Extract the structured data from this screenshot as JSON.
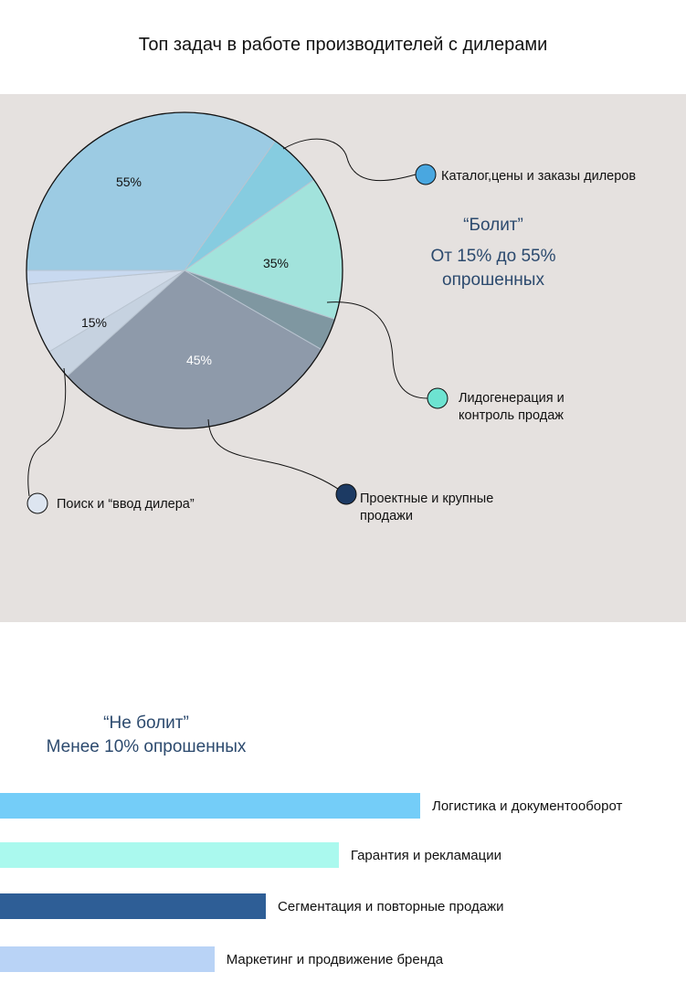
{
  "title": "Топ задач в работе производителей с дилерами",
  "callout_painful": {
    "line1": "“Болит”",
    "line2": "От 15% до 55%",
    "line3": "опрошенных"
  },
  "callout_not_painful": {
    "line1": "“Не болит”",
    "line2": "Менее 10% опрошенных"
  },
  "chart_data": [
    {
      "type": "pie",
      "title": "",
      "legend_placement": "callouts around pie",
      "slices": [
        {
          "name": "Каталог,цены и заказы дилеров",
          "label": "55%",
          "value": 55,
          "color": "#9ccbe3",
          "legend_color": "#49a7e0"
        },
        {
          "name": "Лидогенерация и контроль продаж",
          "label": "35%",
          "value": 35,
          "color": "#a2e3dc",
          "legend_color": "#6de3d1"
        },
        {
          "name": "Проектные и крупные продажи",
          "label": "45%",
          "value": 45,
          "color": "#8e9aaa",
          "legend_color": "#1c3a63"
        },
        {
          "name": "Поиск и “ввод дилера”",
          "label": "15%",
          "value": 15,
          "color": "#d2dcea",
          "legend_color": "#dde5f0"
        }
      ]
    },
    {
      "type": "bar",
      "orientation": "horizontal",
      "categories": [
        "Логистика и документооборот",
        "Гарантия и рекламации",
        "Сегментация и повторные продажи",
        "Маркетинг и продвижение бренда"
      ],
      "values": [
        9.8,
        7.9,
        6.2,
        5.0
      ],
      "colors": [
        "#74cdf8",
        "#aaf9ee",
        "#2e5e96",
        "#b9d3f6"
      ],
      "xlabel": "",
      "ylabel": ""
    }
  ]
}
